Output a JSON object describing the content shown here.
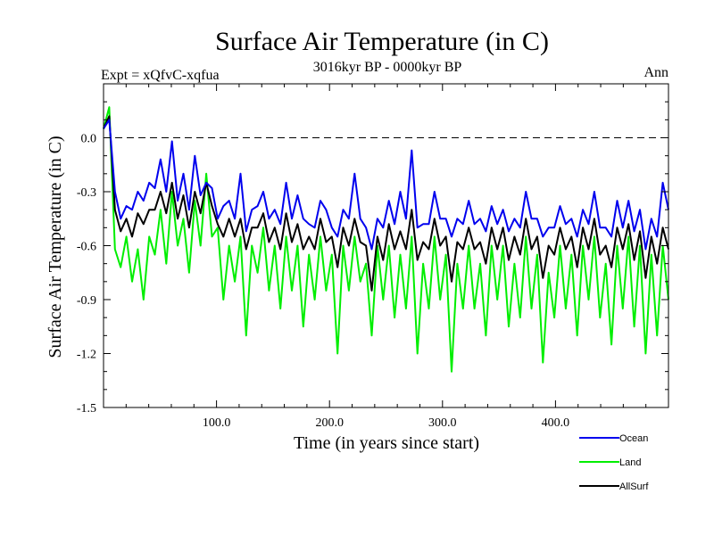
{
  "chart_data": {
    "type": "line",
    "title": "Surface Air Temperature (in C)",
    "subtitle": "3016kyr BP - 0000kyr BP",
    "left_label": "Expt = xQfvC-xqfua",
    "right_label": "Ann",
    "xlabel": "Time (in years since start)",
    "ylabel": "Surface Air Temperature (in C)",
    "xlim": [
      0,
      500
    ],
    "ylim": [
      -1.5,
      0.3
    ],
    "x_ticks": [
      100,
      200,
      300,
      400
    ],
    "x_tick_labels": [
      "100.0",
      "200.0",
      "300.0",
      "400.0"
    ],
    "y_ticks": [
      0.0,
      -0.3,
      -0.6,
      -0.9,
      -1.2,
      -1.5
    ],
    "y_tick_labels": [
      "0.0",
      "-0.3",
      "-0.6",
      "-0.9",
      "-1.2",
      "-1.5"
    ],
    "reference_line": 0.0,
    "legend_position": "bottom-right",
    "series": [
      {
        "name": "Land",
        "color": "#00ee00",
        "values": [
          0.05,
          0.17,
          -0.62,
          -0.72,
          -0.55,
          -0.8,
          -0.62,
          -0.9,
          -0.55,
          -0.65,
          -0.4,
          -0.7,
          -0.3,
          -0.6,
          -0.45,
          -0.75,
          -0.35,
          -0.6,
          -0.2,
          -0.55,
          -0.5,
          -0.9,
          -0.6,
          -0.8,
          -0.55,
          -1.1,
          -0.6,
          -0.75,
          -0.5,
          -0.85,
          -0.6,
          -0.95,
          -0.55,
          -0.85,
          -0.6,
          -1.05,
          -0.65,
          -0.9,
          -0.55,
          -0.85,
          -0.65,
          -1.2,
          -0.6,
          -0.85,
          -0.55,
          -0.8,
          -0.7,
          -1.1,
          -0.6,
          -0.9,
          -0.6,
          -1.0,
          -0.65,
          -0.95,
          -0.55,
          -1.2,
          -0.7,
          -0.95,
          -0.55,
          -0.9,
          -0.65,
          -1.3,
          -0.7,
          -0.95,
          -0.6,
          -0.95,
          -0.7,
          -1.1,
          -0.6,
          -0.9,
          -0.6,
          -1.05,
          -0.7,
          -1.0,
          -0.55,
          -0.95,
          -0.65,
          -1.25,
          -0.75,
          -1.0,
          -0.6,
          -0.95,
          -0.65,
          -1.1,
          -0.6,
          -0.9,
          -0.55,
          -1.0,
          -0.7,
          -1.15,
          -0.6,
          -0.95,
          -0.55,
          -1.05,
          -0.6,
          -1.2,
          -0.65,
          -1.1,
          -0.6,
          -0.9
        ]
      },
      {
        "name": "AllSurf",
        "color": "#000000",
        "values": [
          0.05,
          0.12,
          -0.4,
          -0.52,
          -0.45,
          -0.55,
          -0.42,
          -0.48,
          -0.4,
          -0.4,
          -0.3,
          -0.42,
          -0.25,
          -0.45,
          -0.32,
          -0.5,
          -0.3,
          -0.42,
          -0.25,
          -0.38,
          -0.48,
          -0.55,
          -0.45,
          -0.55,
          -0.45,
          -0.62,
          -0.5,
          -0.5,
          -0.42,
          -0.58,
          -0.5,
          -0.62,
          -0.42,
          -0.58,
          -0.48,
          -0.62,
          -0.55,
          -0.62,
          -0.45,
          -0.58,
          -0.55,
          -0.72,
          -0.5,
          -0.6,
          -0.45,
          -0.58,
          -0.6,
          -0.85,
          -0.55,
          -0.68,
          -0.48,
          -0.62,
          -0.52,
          -0.62,
          -0.4,
          -0.68,
          -0.58,
          -0.62,
          -0.45,
          -0.6,
          -0.55,
          -0.8,
          -0.58,
          -0.62,
          -0.5,
          -0.62,
          -0.58,
          -0.7,
          -0.5,
          -0.62,
          -0.5,
          -0.68,
          -0.55,
          -0.65,
          -0.45,
          -0.62,
          -0.55,
          -0.78,
          -0.6,
          -0.65,
          -0.5,
          -0.62,
          -0.55,
          -0.72,
          -0.5,
          -0.62,
          -0.45,
          -0.65,
          -0.6,
          -0.72,
          -0.5,
          -0.62,
          -0.48,
          -0.68,
          -0.52,
          -0.78,
          -0.55,
          -0.7,
          -0.5,
          -0.62
        ]
      },
      {
        "name": "Ocean",
        "color": "#0000ee",
        "values": [
          0.05,
          0.1,
          -0.3,
          -0.45,
          -0.38,
          -0.4,
          -0.3,
          -0.35,
          -0.25,
          -0.28,
          -0.12,
          -0.3,
          -0.02,
          -0.35,
          -0.2,
          -0.4,
          -0.1,
          -0.32,
          -0.25,
          -0.28,
          -0.45,
          -0.38,
          -0.35,
          -0.45,
          -0.2,
          -0.52,
          -0.4,
          -0.38,
          -0.3,
          -0.45,
          -0.4,
          -0.48,
          -0.25,
          -0.45,
          -0.32,
          -0.45,
          -0.48,
          -0.5,
          -0.35,
          -0.4,
          -0.5,
          -0.55,
          -0.4,
          -0.45,
          -0.2,
          -0.45,
          -0.5,
          -0.62,
          -0.45,
          -0.5,
          -0.35,
          -0.48,
          -0.3,
          -0.45,
          -0.07,
          -0.5,
          -0.48,
          -0.48,
          -0.3,
          -0.45,
          -0.45,
          -0.55,
          -0.45,
          -0.48,
          -0.35,
          -0.48,
          -0.45,
          -0.52,
          -0.38,
          -0.48,
          -0.4,
          -0.52,
          -0.45,
          -0.5,
          -0.3,
          -0.45,
          -0.45,
          -0.55,
          -0.5,
          -0.5,
          -0.38,
          -0.48,
          -0.45,
          -0.55,
          -0.4,
          -0.48,
          -0.3,
          -0.5,
          -0.5,
          -0.55,
          -0.35,
          -0.5,
          -0.35,
          -0.52,
          -0.4,
          -0.62,
          -0.45,
          -0.55,
          -0.25,
          -0.4
        ]
      }
    ]
  }
}
